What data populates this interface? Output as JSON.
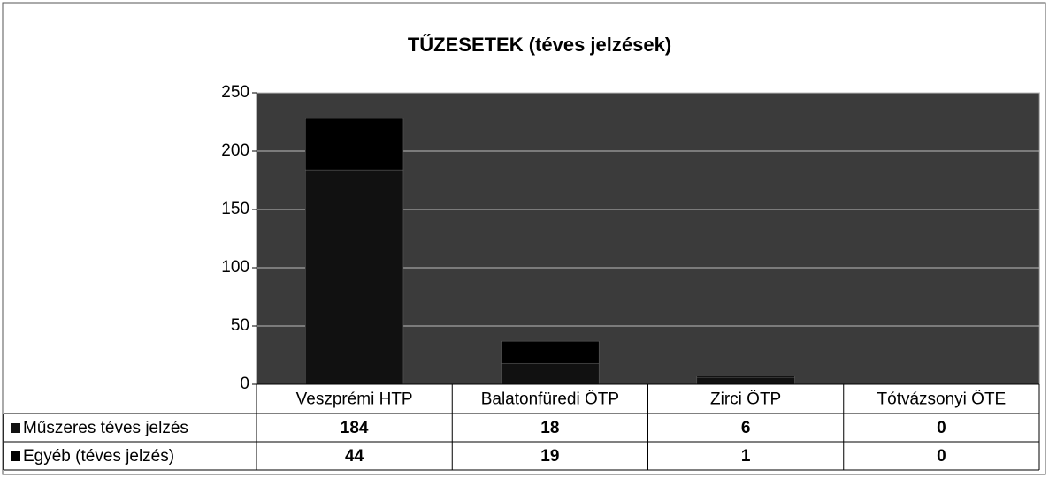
{
  "chart_data": {
    "type": "bar",
    "stacked": true,
    "title": "TŰZESETEK (téves jelzések)",
    "categories": [
      "Veszprémi HTP",
      "Balatonfüredi ÖTP",
      "Zirci ÖTP",
      "Tótvázsonyi ÖTE"
    ],
    "series": [
      {
        "name": "Műszeres téves jelzés",
        "color": "#111111",
        "values": [
          184,
          18,
          6,
          0
        ]
      },
      {
        "name": "Egyéb (téves jelzés)",
        "color": "#000000",
        "values": [
          44,
          19,
          1,
          0
        ]
      }
    ],
    "ylim": [
      0,
      250
    ],
    "yticks": [
      0,
      50,
      100,
      150,
      200,
      250
    ],
    "grid": true
  }
}
